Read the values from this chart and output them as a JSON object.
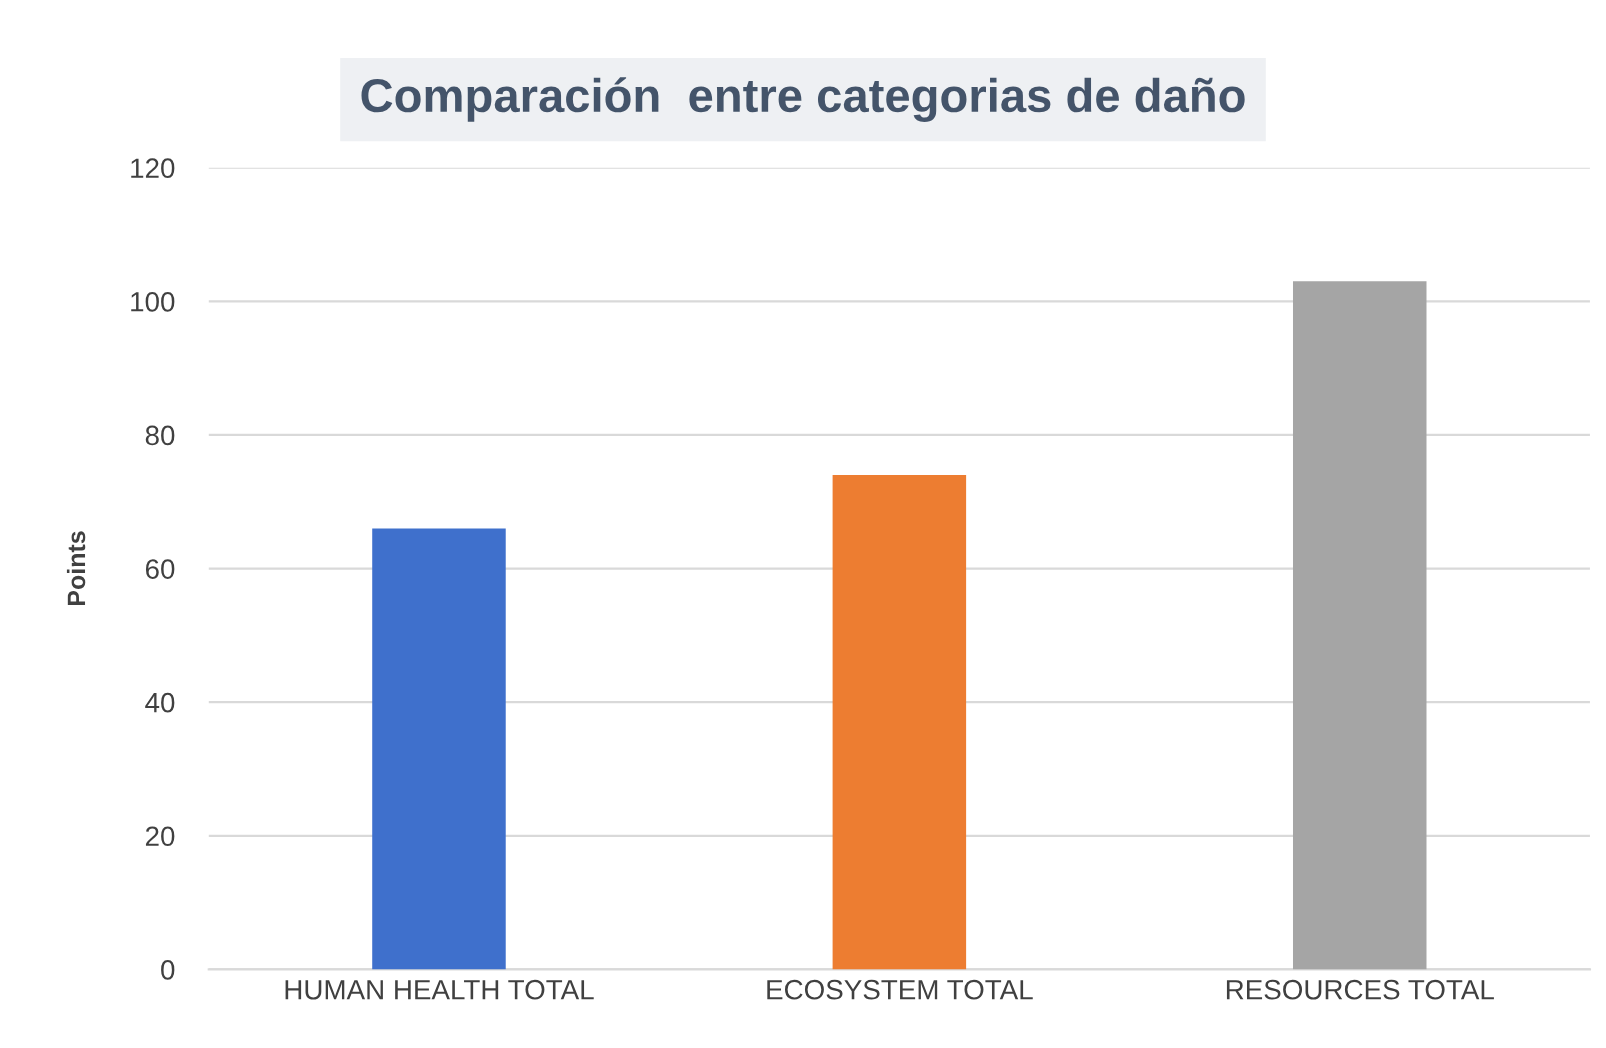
{
  "chart_data": {
    "type": "bar",
    "title": "Comparación  entre categorias de daño",
    "ylabel": "Points",
    "categories": [
      "HUMAN HEALTH TOTAL",
      "ECOSYSTEM TOTAL",
      "RESOURCES TOTAL"
    ],
    "values": [
      66,
      74,
      103
    ],
    "colors": [
      "#3f70cc",
      "#ed7d31",
      "#a5a5a5"
    ],
    "ylim": [
      0,
      120
    ],
    "yticks": [
      0,
      20,
      40,
      60,
      80,
      100,
      120
    ],
    "grid": "y"
  }
}
